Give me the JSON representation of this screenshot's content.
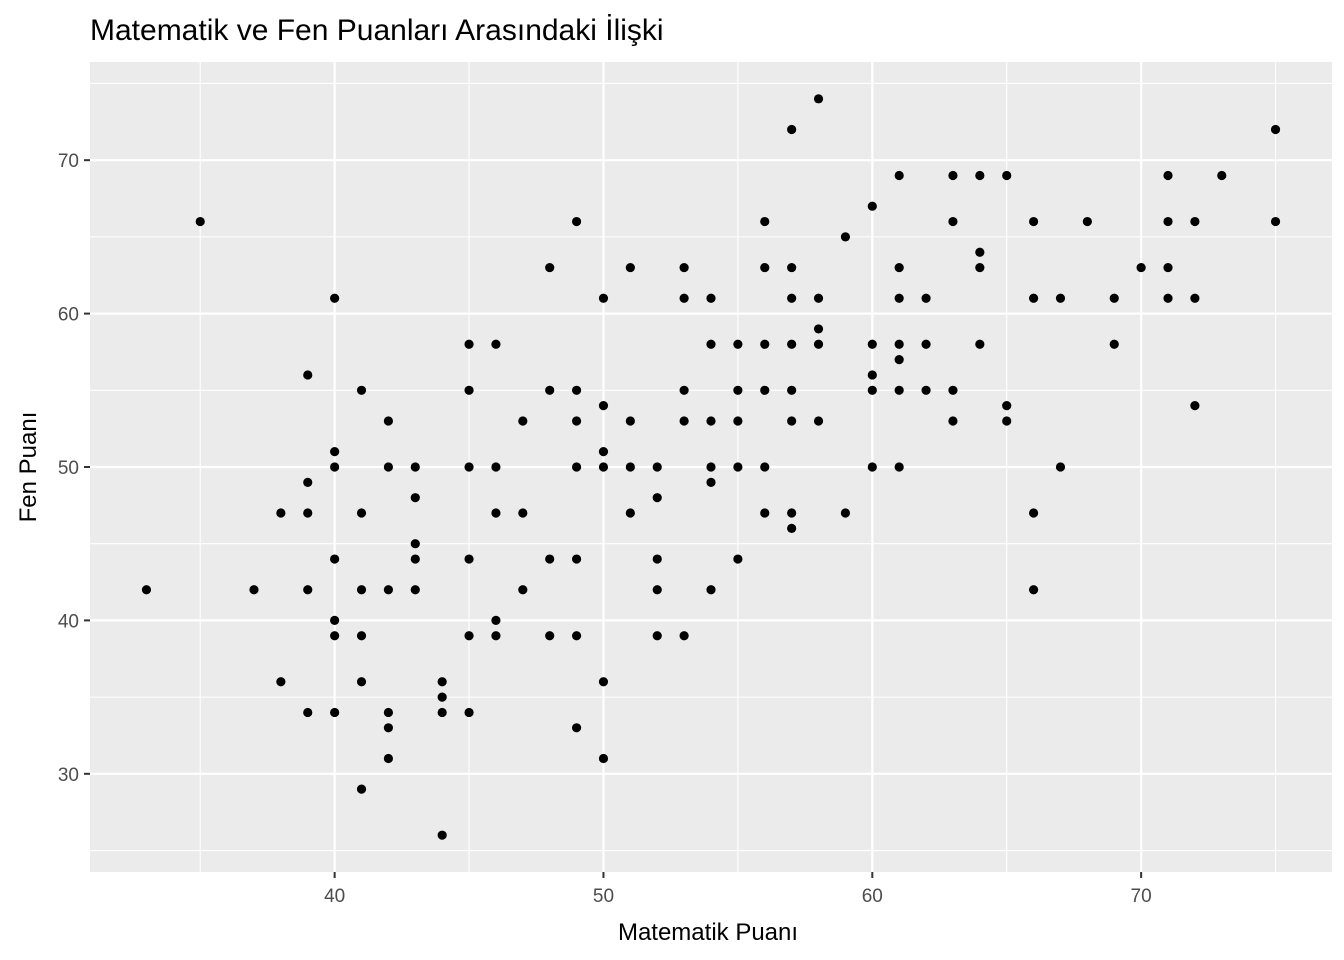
{
  "chart_data": {
    "type": "scatter",
    "title": "Matematik ve Fen Puanları Arasındaki İlişki",
    "xlabel": "Matematik Puanı",
    "ylabel": "Fen Puanı",
    "xlim": [
      30.9,
      77.1
    ],
    "ylim": [
      23.6,
      76.4
    ],
    "x_ticks": [
      40,
      50,
      60,
      70
    ],
    "y_ticks": [
      30,
      40,
      50,
      60,
      70
    ],
    "x_minor_ticks": [
      35,
      45,
      55,
      65,
      75
    ],
    "y_minor_ticks": [
      25,
      35,
      45,
      55,
      65,
      75
    ],
    "grid": true,
    "panel_background": "#ebebeb",
    "grid_color": "#ffffff",
    "point_color": "#000000",
    "points": [
      [
        33,
        42
      ],
      [
        35,
        66
      ],
      [
        37,
        42
      ],
      [
        38,
        47
      ],
      [
        38,
        36
      ],
      [
        39,
        56
      ],
      [
        39,
        49
      ],
      [
        39,
        47
      ],
      [
        39,
        42
      ],
      [
        39,
        34
      ],
      [
        40,
        61
      ],
      [
        40,
        51
      ],
      [
        40,
        50
      ],
      [
        40,
        44
      ],
      [
        40,
        40
      ],
      [
        40,
        39
      ],
      [
        40,
        34
      ],
      [
        41,
        55
      ],
      [
        41,
        47
      ],
      [
        41,
        42
      ],
      [
        41,
        39
      ],
      [
        41,
        36
      ],
      [
        41,
        29
      ],
      [
        42,
        53
      ],
      [
        42,
        50
      ],
      [
        42,
        42
      ],
      [
        42,
        34
      ],
      [
        42,
        33
      ],
      [
        42,
        31
      ],
      [
        43,
        50
      ],
      [
        43,
        48
      ],
      [
        43,
        45
      ],
      [
        43,
        44
      ],
      [
        43,
        42
      ],
      [
        44,
        36
      ],
      [
        44,
        35
      ],
      [
        44,
        34
      ],
      [
        44,
        26
      ],
      [
        45,
        58
      ],
      [
        45,
        55
      ],
      [
        45,
        50
      ],
      [
        45,
        44
      ],
      [
        45,
        39
      ],
      [
        45,
        34
      ],
      [
        46,
        58
      ],
      [
        46,
        50
      ],
      [
        46,
        47
      ],
      [
        46,
        40
      ],
      [
        46,
        39
      ],
      [
        47,
        53
      ],
      [
        47,
        47
      ],
      [
        47,
        42
      ],
      [
        48,
        63
      ],
      [
        48,
        55
      ],
      [
        48,
        44
      ],
      [
        48,
        39
      ],
      [
        49,
        66
      ],
      [
        49,
        55
      ],
      [
        49,
        53
      ],
      [
        49,
        50
      ],
      [
        49,
        44
      ],
      [
        49,
        39
      ],
      [
        49,
        33
      ],
      [
        50,
        61
      ],
      [
        50,
        54
      ],
      [
        50,
        51
      ],
      [
        50,
        50
      ],
      [
        50,
        36
      ],
      [
        50,
        31
      ],
      [
        51,
        63
      ],
      [
        51,
        53
      ],
      [
        51,
        50
      ],
      [
        51,
        47
      ],
      [
        52,
        50
      ],
      [
        52,
        48
      ],
      [
        52,
        44
      ],
      [
        52,
        42
      ],
      [
        52,
        39
      ],
      [
        53,
        63
      ],
      [
        53,
        61
      ],
      [
        53,
        55
      ],
      [
        53,
        53
      ],
      [
        53,
        39
      ],
      [
        54,
        61
      ],
      [
        54,
        58
      ],
      [
        54,
        53
      ],
      [
        54,
        50
      ],
      [
        54,
        49
      ],
      [
        54,
        42
      ],
      [
        55,
        58
      ],
      [
        55,
        55
      ],
      [
        55,
        53
      ],
      [
        55,
        50
      ],
      [
        55,
        44
      ],
      [
        56,
        66
      ],
      [
        56,
        63
      ],
      [
        56,
        58
      ],
      [
        56,
        55
      ],
      [
        56,
        50
      ],
      [
        56,
        47
      ],
      [
        57,
        72
      ],
      [
        57,
        63
      ],
      [
        57,
        61
      ],
      [
        57,
        58
      ],
      [
        57,
        55
      ],
      [
        57,
        53
      ],
      [
        57,
        47
      ],
      [
        57,
        46
      ],
      [
        58,
        74
      ],
      [
        58,
        61
      ],
      [
        58,
        59
      ],
      [
        58,
        58
      ],
      [
        58,
        53
      ],
      [
        59,
        65
      ],
      [
        59,
        47
      ],
      [
        60,
        67
      ],
      [
        60,
        58
      ],
      [
        60,
        56
      ],
      [
        60,
        55
      ],
      [
        60,
        50
      ],
      [
        61,
        69
      ],
      [
        61,
        63
      ],
      [
        61,
        61
      ],
      [
        61,
        58
      ],
      [
        61,
        57
      ],
      [
        61,
        55
      ],
      [
        61,
        50
      ],
      [
        62,
        61
      ],
      [
        62,
        58
      ],
      [
        62,
        55
      ],
      [
        63,
        69
      ],
      [
        63,
        66
      ],
      [
        63,
        55
      ],
      [
        63,
        53
      ],
      [
        64,
        69
      ],
      [
        64,
        64
      ],
      [
        64,
        63
      ],
      [
        64,
        58
      ],
      [
        65,
        69
      ],
      [
        65,
        54
      ],
      [
        65,
        53
      ],
      [
        66,
        66
      ],
      [
        66,
        61
      ],
      [
        66,
        47
      ],
      [
        66,
        42
      ],
      [
        67,
        61
      ],
      [
        67,
        50
      ],
      [
        68,
        66
      ],
      [
        69,
        61
      ],
      [
        69,
        58
      ],
      [
        70,
        63
      ],
      [
        71,
        69
      ],
      [
        71,
        66
      ],
      [
        71,
        63
      ],
      [
        71,
        61
      ],
      [
        72,
        66
      ],
      [
        72,
        61
      ],
      [
        72,
        54
      ],
      [
        73,
        69
      ],
      [
        75,
        72
      ],
      [
        75,
        66
      ]
    ]
  }
}
